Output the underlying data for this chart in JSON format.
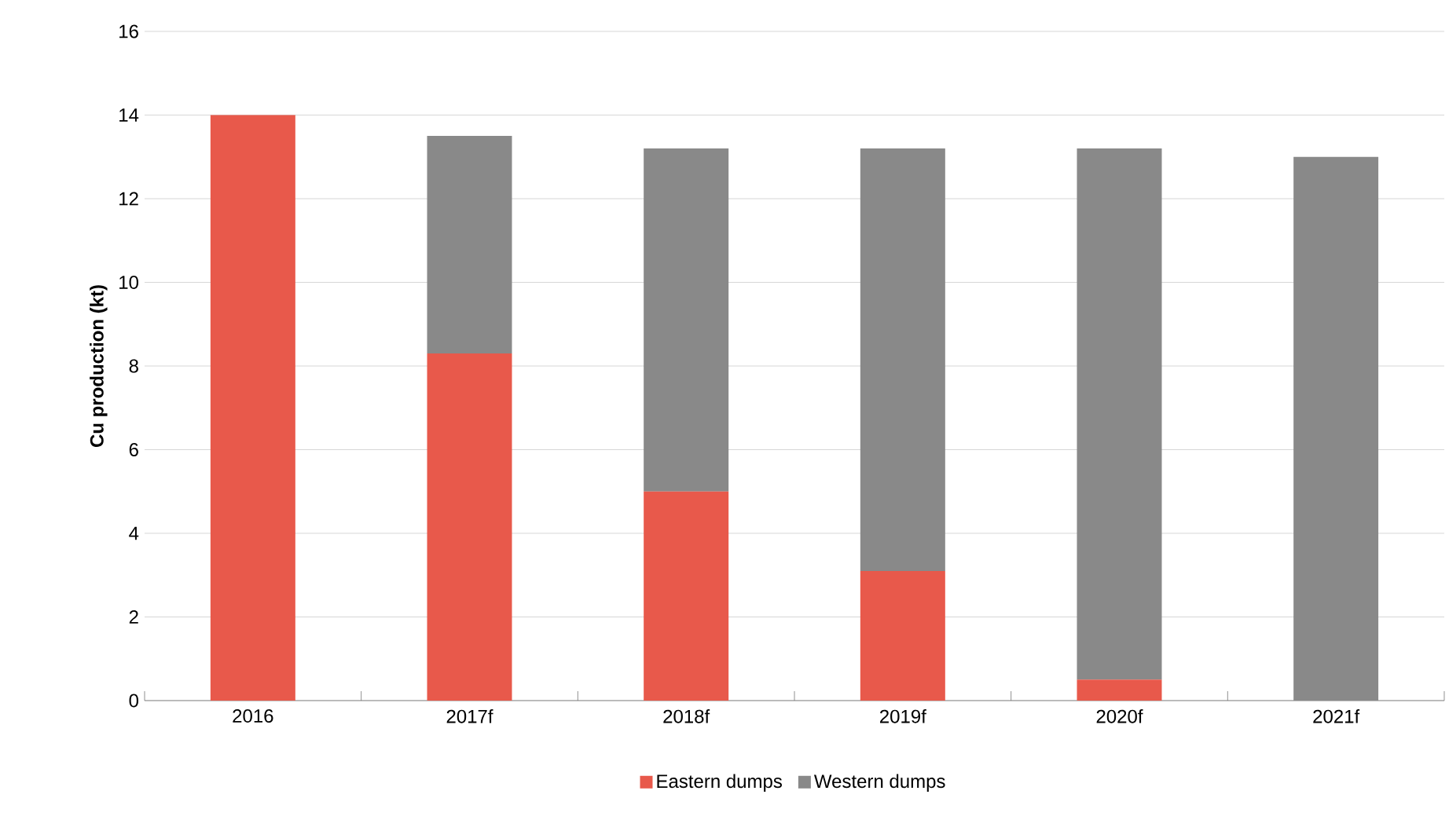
{
  "chart_data": {
    "type": "bar",
    "stacked": true,
    "ylabel": "Cu production (kt)",
    "categories": [
      "2016",
      "2017f",
      "2018f",
      "2019f",
      "2020f",
      "2021f"
    ],
    "series": [
      {
        "name": "Eastern dumps",
        "color": "#e8594b",
        "values": [
          14.0,
          8.3,
          5.0,
          3.1,
          0.5,
          0
        ]
      },
      {
        "name": "Western dumps",
        "color": "#898989",
        "values": [
          0,
          5.2,
          8.2,
          10.1,
          12.7,
          13.0
        ]
      }
    ],
    "ylim": [
      0,
      16
    ],
    "yticks": [
      0,
      2,
      4,
      6,
      8,
      10,
      12,
      14,
      16
    ],
    "grid": "y",
    "legend": "bottom"
  }
}
